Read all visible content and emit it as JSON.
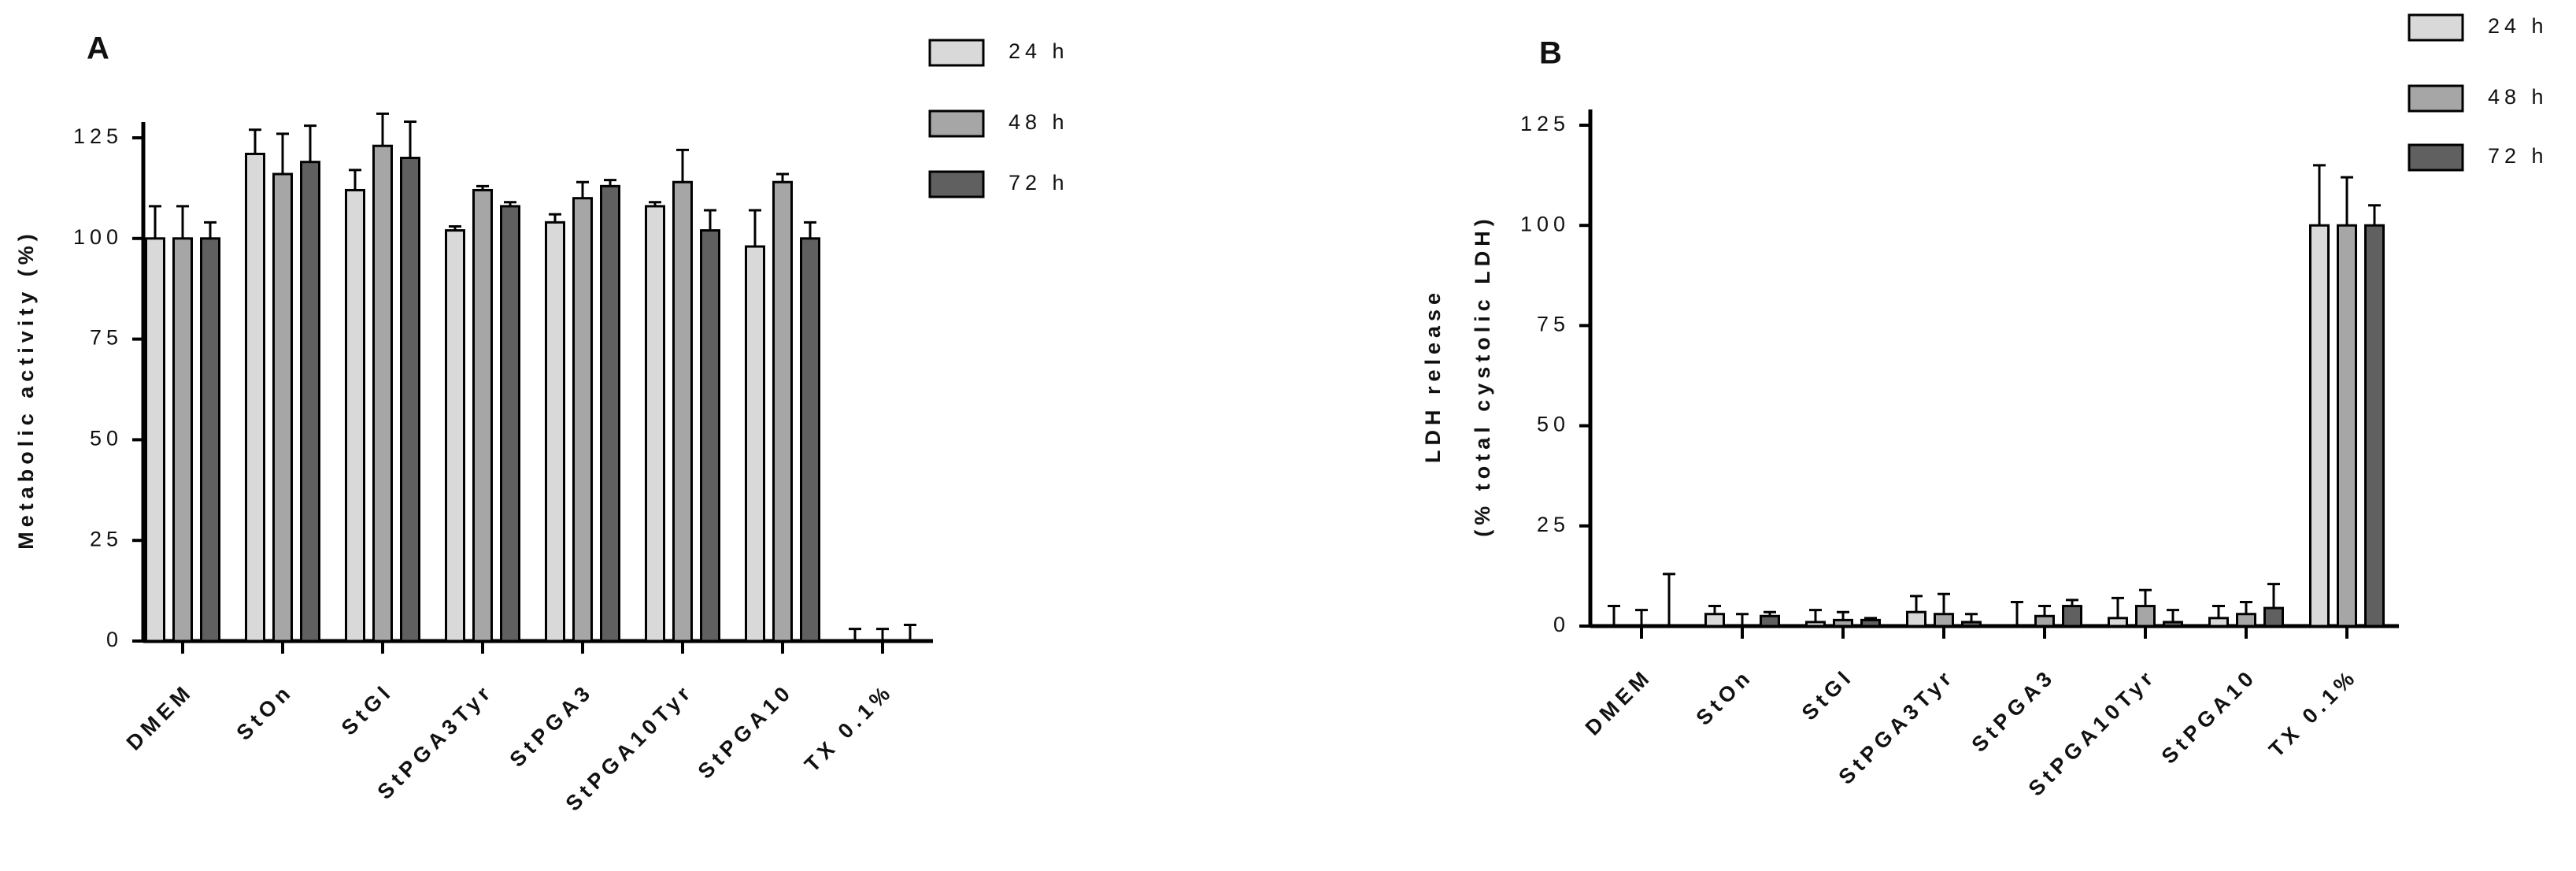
{
  "chart_data": [
    {
      "type": "bar",
      "title": "A",
      "ylabel": [
        "Metabolic activity (%)"
      ],
      "categories": [
        "DMEM",
        "StOn",
        "StGl",
        "StPGA3Tyr",
        "StPGA3",
        "StPGA10Tyr",
        "StPGA10",
        "TX 0.1%"
      ],
      "series": [
        {
          "name": "24 h",
          "color": "#d9d9d9",
          "values": [
            100,
            121,
            112,
            102,
            104,
            108,
            98,
            0
          ],
          "errors": [
            8,
            6,
            5,
            1,
            2,
            1,
            9,
            3
          ]
        },
        {
          "name": "48 h",
          "color": "#a6a6a6",
          "values": [
            100,
            116,
            123,
            112,
            110,
            114,
            114,
            0
          ],
          "errors": [
            8,
            10,
            8,
            1,
            4,
            8,
            2,
            3
          ]
        },
        {
          "name": "72 h",
          "color": "#606060",
          "values": [
            100,
            119,
            120,
            108,
            113,
            102,
            100,
            0
          ],
          "errors": [
            4,
            9,
            9,
            1,
            1.5,
            5,
            4,
            4
          ]
        }
      ],
      "ylim": [
        0,
        125
      ],
      "yticks": [
        0,
        25,
        50,
        75,
        100,
        125
      ]
    },
    {
      "type": "bar",
      "title": "B",
      "ylabel": [
        "LDH release",
        "(% total cystolic LDH)"
      ],
      "categories": [
        "DMEM",
        "StOn",
        "StGl",
        "StPGA3Tyr",
        "StPGA3",
        "StPGA10Tyr",
        "StPGA10",
        "TX 0.1%"
      ],
      "series": [
        {
          "name": "24 h",
          "color": "#d9d9d9",
          "values": [
            0,
            3,
            1,
            3.5,
            0,
            2,
            2,
            100
          ],
          "errors": [
            5,
            2,
            3,
            4,
            6,
            5,
            3,
            15
          ]
        },
        {
          "name": "48 h",
          "color": "#a6a6a6",
          "values": [
            0,
            0,
            1.5,
            3,
            2.5,
            5,
            3,
            100
          ],
          "errors": [
            4,
            3,
            2,
            5,
            2.5,
            4,
            3,
            12
          ]
        },
        {
          "name": "72 h",
          "color": "#606060",
          "values": [
            0,
            2.5,
            1.5,
            1,
            5,
            1,
            4.5,
            100
          ],
          "errors": [
            13,
            1,
            0.5,
            2,
            1.5,
            3,
            6,
            5
          ]
        }
      ],
      "ylim": [
        0,
        125
      ],
      "yticks": [
        0,
        25,
        50,
        75,
        100,
        125
      ]
    }
  ]
}
